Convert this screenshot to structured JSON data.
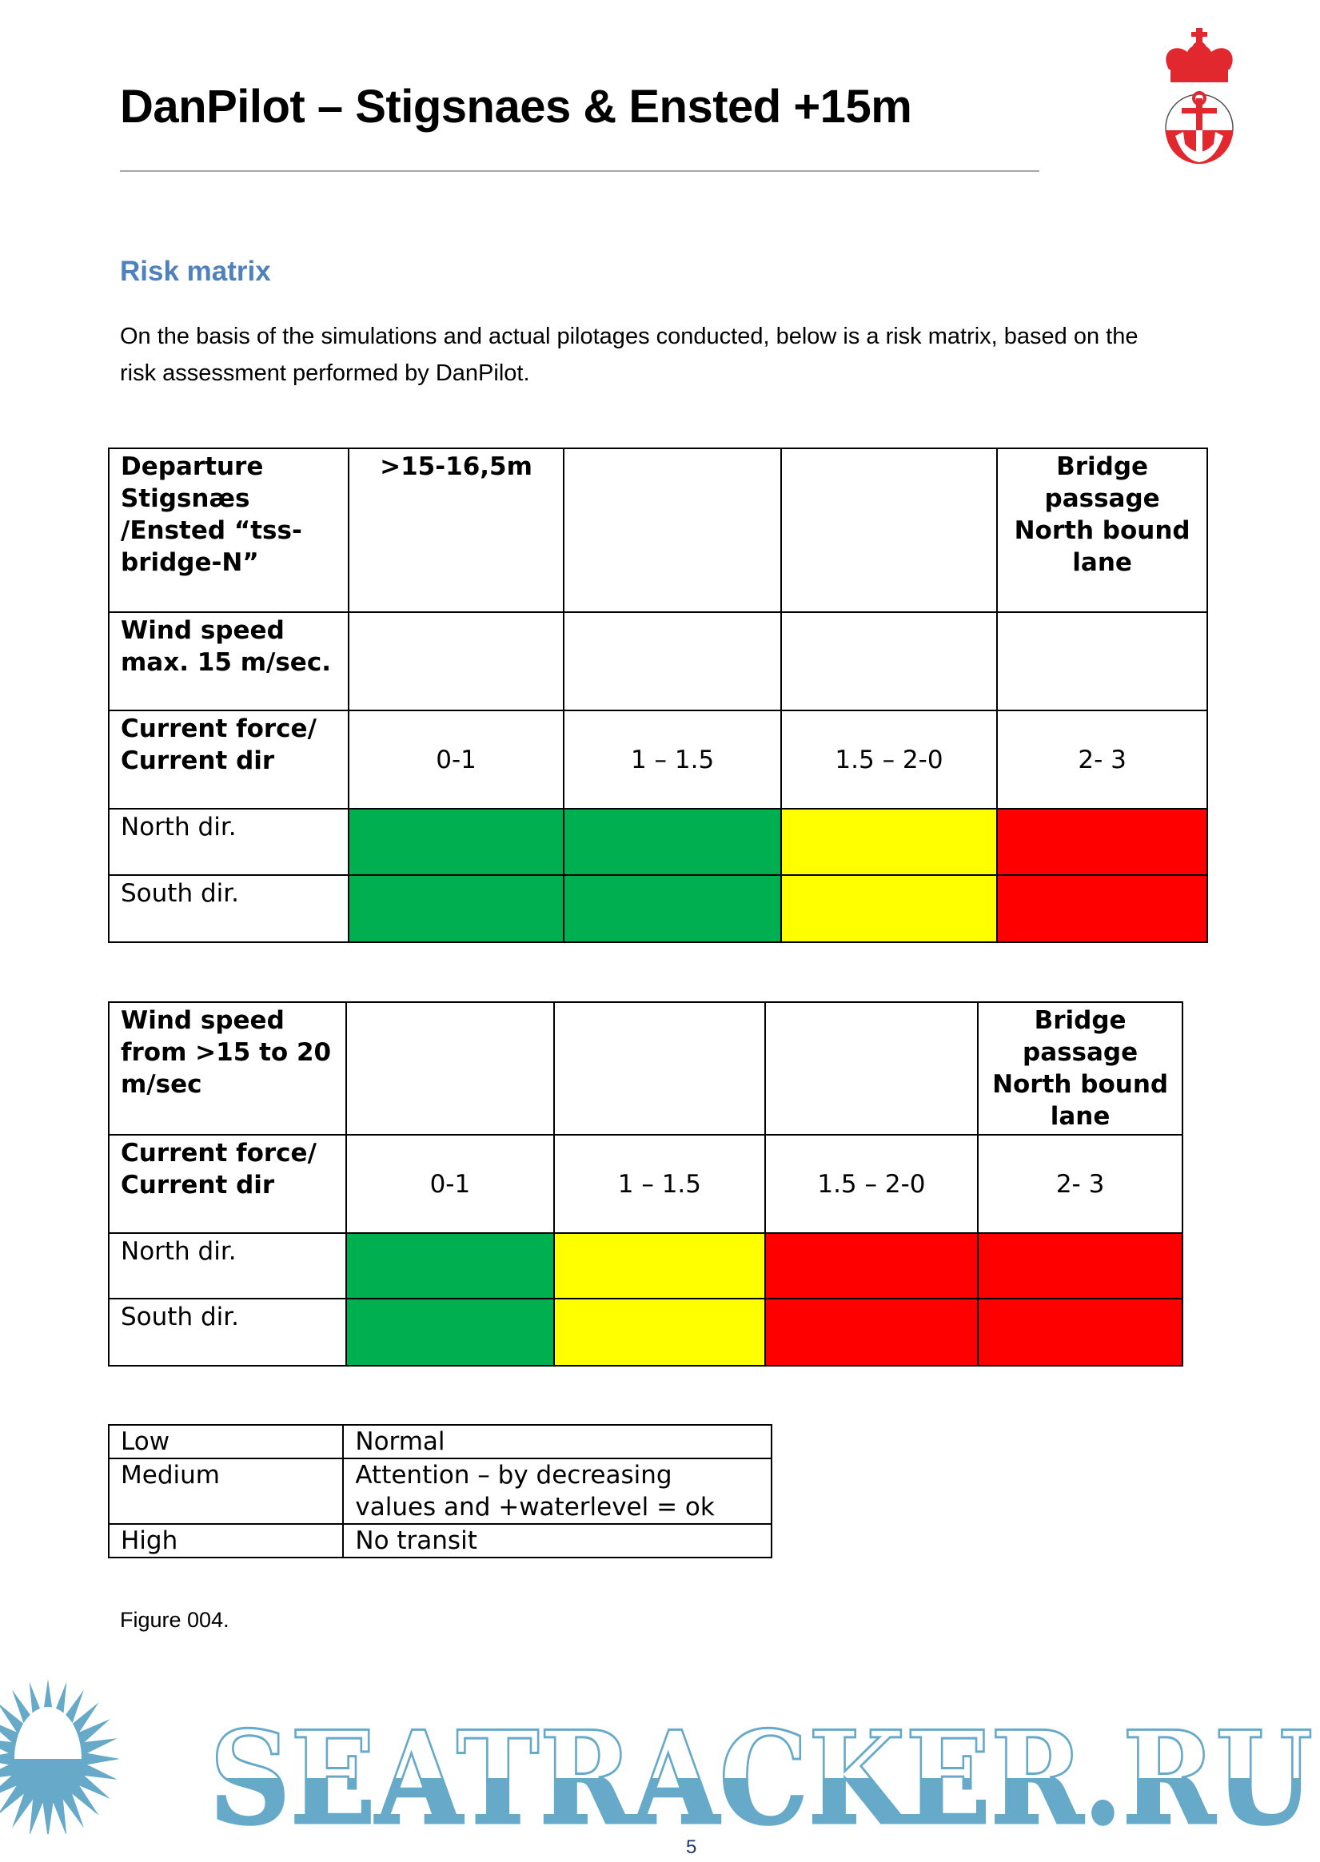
{
  "header": {
    "title": "DanPilot – Stigsnaes & Ensted +15m",
    "logo": "DanPilot crown and anchor emblem"
  },
  "section": {
    "heading": "Risk matrix",
    "intro": "On the basis of the simulations and actual pilotages conducted, below is a risk matrix, based on the risk assessment performed by DanPilot."
  },
  "colors": {
    "low": "#00b050",
    "medium": "#ffff00",
    "high": "#ff0000",
    "heading": "#4f81bd"
  },
  "table1": {
    "corner": "Departure Stigsnæs /Ensted “tss-bridge-N”",
    "draft": ">15-16,5m",
    "bridge": "Bridge passage North bound lane",
    "wind": "Wind speed max. 15 m/sec.",
    "current_label": "Current force/ Current dir",
    "ranges": [
      "0-1",
      "1 – 1.5",
      "1.5 – 2-0",
      "2- 3"
    ],
    "rows": [
      {
        "label": "North dir.",
        "levels": [
          "low",
          "low",
          "medium",
          "high"
        ]
      },
      {
        "label": "South dir.",
        "levels": [
          "low",
          "low",
          "medium",
          "high"
        ]
      }
    ]
  },
  "table2": {
    "wind": "Wind speed from >15 to 20 m/sec",
    "bridge": "Bridge passage North bound lane",
    "current_label": "Current force/ Current dir",
    "ranges": [
      "0-1",
      "1 – 1.5",
      "1.5 – 2-0",
      "2- 3"
    ],
    "rows": [
      {
        "label": "North dir.",
        "levels": [
          "low",
          "medium",
          "high",
          "high"
        ]
      },
      {
        "label": "South dir.",
        "levels": [
          "low",
          "medium",
          "high",
          "high"
        ]
      }
    ]
  },
  "legend": [
    {
      "level": "Low",
      "meaning": "Normal"
    },
    {
      "level": "Medium",
      "meaning": "Attention – by decreasing values and +waterlevel = ok"
    },
    {
      "level": "High",
      "meaning": "No transit"
    }
  ],
  "figure_caption": "Figure 004.",
  "watermark": "SEATRACKER.RU",
  "page_number": "5"
}
